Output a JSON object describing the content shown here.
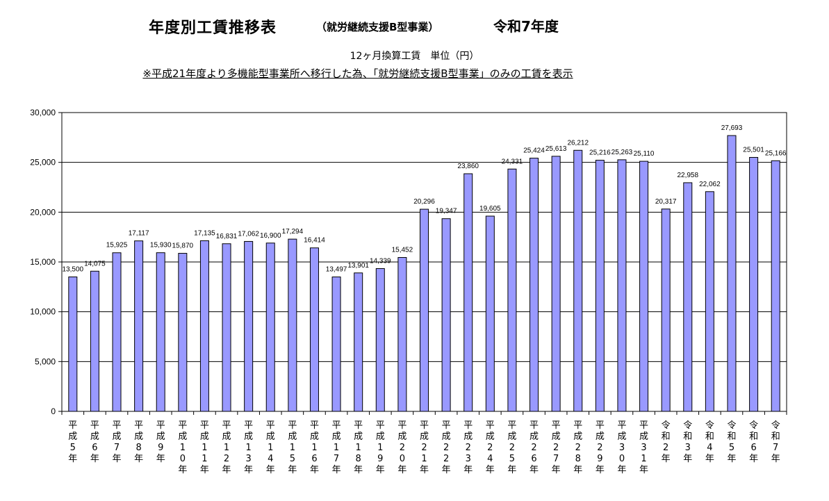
{
  "header": {
    "title": "年度別工賃推移表",
    "title_sub": "（就労継続支援B型事業）",
    "title_year": "令和7年度",
    "subtitle": "12ヶ月換算工賃　単位（円）",
    "note": "※平成21年度より多機能型事業所へ移行した為、「就労継続支援B型事業」のみの工賃を表示"
  },
  "chart_data": {
    "type": "bar",
    "title": "年度別工賃推移表",
    "xlabel": "",
    "ylabel": "",
    "ylim": [
      0,
      30000
    ],
    "yticks": [
      "0",
      "5,000",
      "10,000",
      "15,000",
      "20,000",
      "25,000",
      "30,000"
    ],
    "grid": true,
    "bar_color": "#9999ff",
    "categories": [
      "平成5年",
      "平成6年",
      "平成7年",
      "平成8年",
      "平成9年",
      "平成10年",
      "平成11年",
      "平成12年",
      "平成13年",
      "平成14年",
      "平成15年",
      "平成16年",
      "平成17年",
      "平成18年",
      "平成19年",
      "平成20年",
      "平成21年",
      "平成22年",
      "平成23年",
      "平成24年",
      "平成25年",
      "平成26年",
      "平成27年",
      "平成28年",
      "平成29年",
      "平成30年",
      "平成31年",
      "令和2年",
      "令和3年",
      "令和4年",
      "令和5年",
      "令和6年",
      "令和7年"
    ],
    "values": [
      13500,
      14075,
      15925,
      17117,
      15930,
      15870,
      17135,
      16831,
      17062,
      16900,
      17294,
      16414,
      13497,
      13901,
      14339,
      15452,
      20296,
      19347,
      23860,
      19605,
      24331,
      25424,
      25613,
      26212,
      25216,
      25263,
      25110,
      20317,
      22958,
      22062,
      27693,
      25501,
      25166
    ],
    "data_labels": [
      "13,500",
      "14,075",
      "15,925",
      "17,117",
      "15,930",
      "15,870",
      "17,135",
      "16,831",
      "17,062",
      "16,900",
      "17,294",
      "16,414",
      "13,497",
      "13,901",
      "14,339",
      "15,452",
      "20,296",
      "19,347",
      "23,860",
      "19,605",
      "24,331",
      "25,424",
      "25,613",
      "26,212",
      "25,216",
      "25,263",
      "25,110",
      "20,317",
      "22,958",
      "22,062",
      "27,693",
      "25,501",
      "25,166"
    ]
  }
}
